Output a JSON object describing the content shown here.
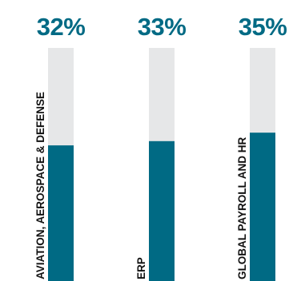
{
  "chart_data": {
    "type": "bar",
    "categories": [
      "AVIATION, AEROSPACE & DEFENSE",
      "ERP",
      "GLOBAL PAYROLL AND HR"
    ],
    "values": [
      32,
      33,
      35
    ],
    "value_labels": [
      "32%",
      "33%",
      "35%"
    ],
    "ylim": [
      0,
      55
    ],
    "title": "",
    "xlabel": "",
    "ylabel": "",
    "grid": false,
    "legend": "none",
    "colors": {
      "bar": "#006a84",
      "track": "#e6e7e8",
      "label": "#006a84",
      "category": "#111111"
    }
  }
}
